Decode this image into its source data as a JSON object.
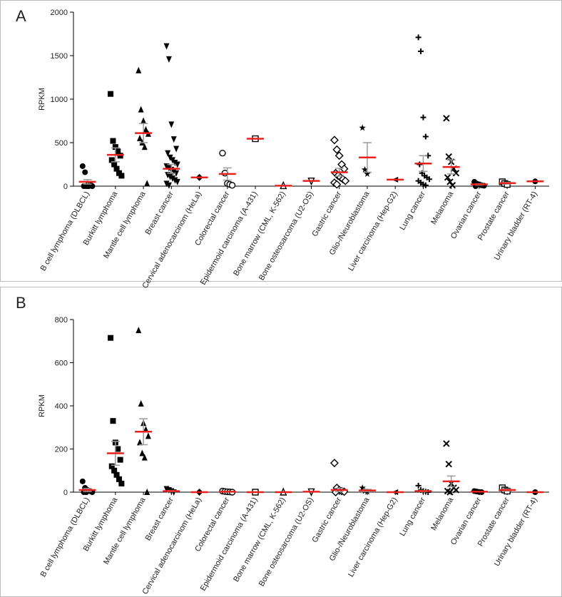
{
  "chart_data": [
    {
      "type": "dot",
      "label": "A",
      "ylabel": "RPKM",
      "categories": [
        "B cell lymphoma (DLBCL)",
        "Burkitt lymphoma",
        "Mantle cell lymphoma",
        "Breast cancer",
        "Cervical adenocarcinom (HeLa)",
        "Colorectal cancer",
        "Epidermoid carcinoma (A-431)",
        "Bone marrow (CML, K-562)",
        "Bone osteosarcoma (U2-OS)",
        "Gastric cancer",
        "Glio-/Neuroblastoma",
        "Liver carcinoma (Hep-G2)",
        "Lung cancer",
        "Melanoma",
        "Ovarian cancer",
        "Prostate cancer",
        "Urinary bladder (RT-4)"
      ],
      "points": [
        [
          230,
          160,
          10,
          5,
          0,
          0,
          0,
          0,
          10
        ],
        [
          1060,
          520,
          450,
          400,
          350,
          300,
          250,
          200,
          150,
          120
        ],
        [
          1330,
          880,
          750,
          650,
          600,
          550,
          500,
          450,
          30
        ],
        [
          1610,
          1460,
          710,
          540,
          430,
          380,
          330,
          300,
          270,
          250,
          230,
          210,
          190,
          170,
          150,
          130,
          110,
          90,
          70,
          50,
          30,
          10
        ],
        [
          100
        ],
        [
          380,
          150,
          30,
          20,
          10
        ],
        [
          545
        ],
        [
          5
        ],
        [
          60
        ],
        [
          530,
          420,
          350,
          250,
          200,
          150,
          120,
          100,
          80,
          60,
          40,
          20
        ],
        [
          670,
          190,
          140
        ],
        [
          75
        ],
        [
          1710,
          1550,
          790,
          570,
          350,
          250,
          150,
          120,
          100,
          80,
          60,
          40,
          20,
          10
        ],
        [
          780,
          340,
          280,
          200,
          150,
          100,
          50,
          10
        ],
        [
          50,
          30,
          20,
          10,
          5,
          0
        ],
        [
          50,
          30,
          20
        ],
        [
          55
        ]
      ],
      "means": [
        50,
        360,
        610,
        200,
        100,
        140,
        545,
        5,
        60,
        160,
        330,
        75,
        260,
        220,
        20,
        35,
        55
      ],
      "errors": [
        25,
        80,
        110,
        50,
        null,
        70,
        null,
        null,
        null,
        45,
        170,
        null,
        90,
        80,
        8,
        10,
        null
      ],
      "ylim": [
        0,
        2000
      ],
      "yticks": [
        0,
        500,
        1000,
        1500,
        2000
      ]
    },
    {
      "type": "dot",
      "label": "B",
      "ylabel": "RPKM",
      "categories": [
        "B cell lymphoma (DLBCL)",
        "Burkitt lymphoma",
        "Mantle cell lymphoma",
        "Breast cancer",
        "Cervical adenocarcinom (HeLa)",
        "Colorectal cancer",
        "Epidermoid carcinoma (A-431)",
        "Bone marrow (CML, K-562)",
        "Bone osteosarcoma (U2-OS)",
        "Gastric cancer",
        "Glio-/Neuroblastoma",
        "Liver carcinoma (Hep-G2)",
        "Lung cancer",
        "Melanoma",
        "Ovarian cancer",
        "Prostate cancer",
        "Urinary bladder (RT-4)"
      ],
      "points": [
        [
          50,
          20,
          10,
          5,
          0,
          0,
          0
        ],
        [
          715,
          330,
          230,
          200,
          150,
          120,
          100,
          80,
          60,
          40
        ],
        [
          750,
          410,
          320,
          290,
          260,
          230,
          180,
          160,
          0
        ],
        [
          15,
          10,
          5,
          0
        ],
        [
          0
        ],
        [
          5,
          3,
          2,
          1,
          0
        ],
        [
          0
        ],
        [
          0
        ],
        [
          2
        ],
        [
          135,
          20,
          10,
          5,
          2,
          0
        ],
        [
          20,
          5,
          2
        ],
        [
          0
        ],
        [
          30,
          10,
          5,
          2,
          0
        ],
        [
          225,
          130,
          40,
          20,
          10,
          5,
          0
        ],
        [
          5,
          3,
          1,
          0
        ],
        [
          20,
          10,
          5
        ],
        [
          0
        ]
      ],
      "means": [
        10,
        180,
        280,
        5,
        0,
        2,
        0,
        0,
        2,
        10,
        8,
        0,
        5,
        50,
        2,
        10,
        0
      ],
      "errors": [
        7,
        55,
        60,
        3,
        null,
        null,
        null,
        null,
        null,
        8,
        5,
        null,
        3,
        25,
        null,
        5,
        null
      ],
      "ylim": [
        0,
        800
      ],
      "yticks": [
        0,
        200,
        400,
        600,
        800
      ]
    }
  ],
  "markers": [
    "circle",
    "square",
    "triangle",
    "triangle-down",
    "diamond",
    "circle-open",
    "square-open",
    "triangle-open",
    "triangle-down-open",
    "diamond-open",
    "star",
    "triangle-left",
    "plus",
    "cross",
    "circle",
    "square-open",
    "circle"
  ],
  "point_color": "#000000",
  "mean_color": "#e8211d",
  "error_color": "#9a9a9a"
}
